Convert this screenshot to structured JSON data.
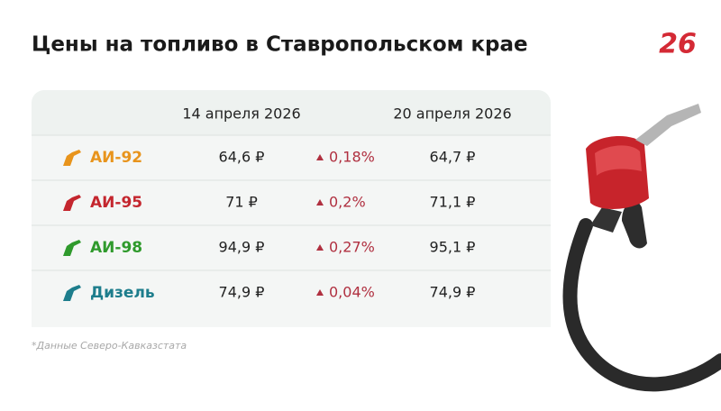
{
  "header": {
    "title": "Цены на топливо в Ставропольском крае",
    "logo": "26"
  },
  "table": {
    "columns": [
      "14 апреля 2026",
      "20 апреля 2026"
    ],
    "rows": [
      {
        "fuel": "АИ-92",
        "color": "#e8941c",
        "price_before": "64,6 ₽",
        "change": "0,18%",
        "price_after": "64,7 ₽"
      },
      {
        "fuel": "АИ-95",
        "color": "#c4262e",
        "price_before": "71 ₽",
        "change": "0,2%",
        "price_after": "71,1 ₽"
      },
      {
        "fuel": "АИ-98",
        "color": "#2f9a2c",
        "price_before": "94,9 ₽",
        "change": "0,27%",
        "price_after": "95,1 ₽"
      },
      {
        "fuel": "Дизель",
        "color": "#1d7d8c",
        "price_before": "74,9 ₽",
        "change": "0,04%",
        "price_after": "74,9 ₽"
      }
    ]
  },
  "footnote": "*Данные Северо-Кавказстата"
}
